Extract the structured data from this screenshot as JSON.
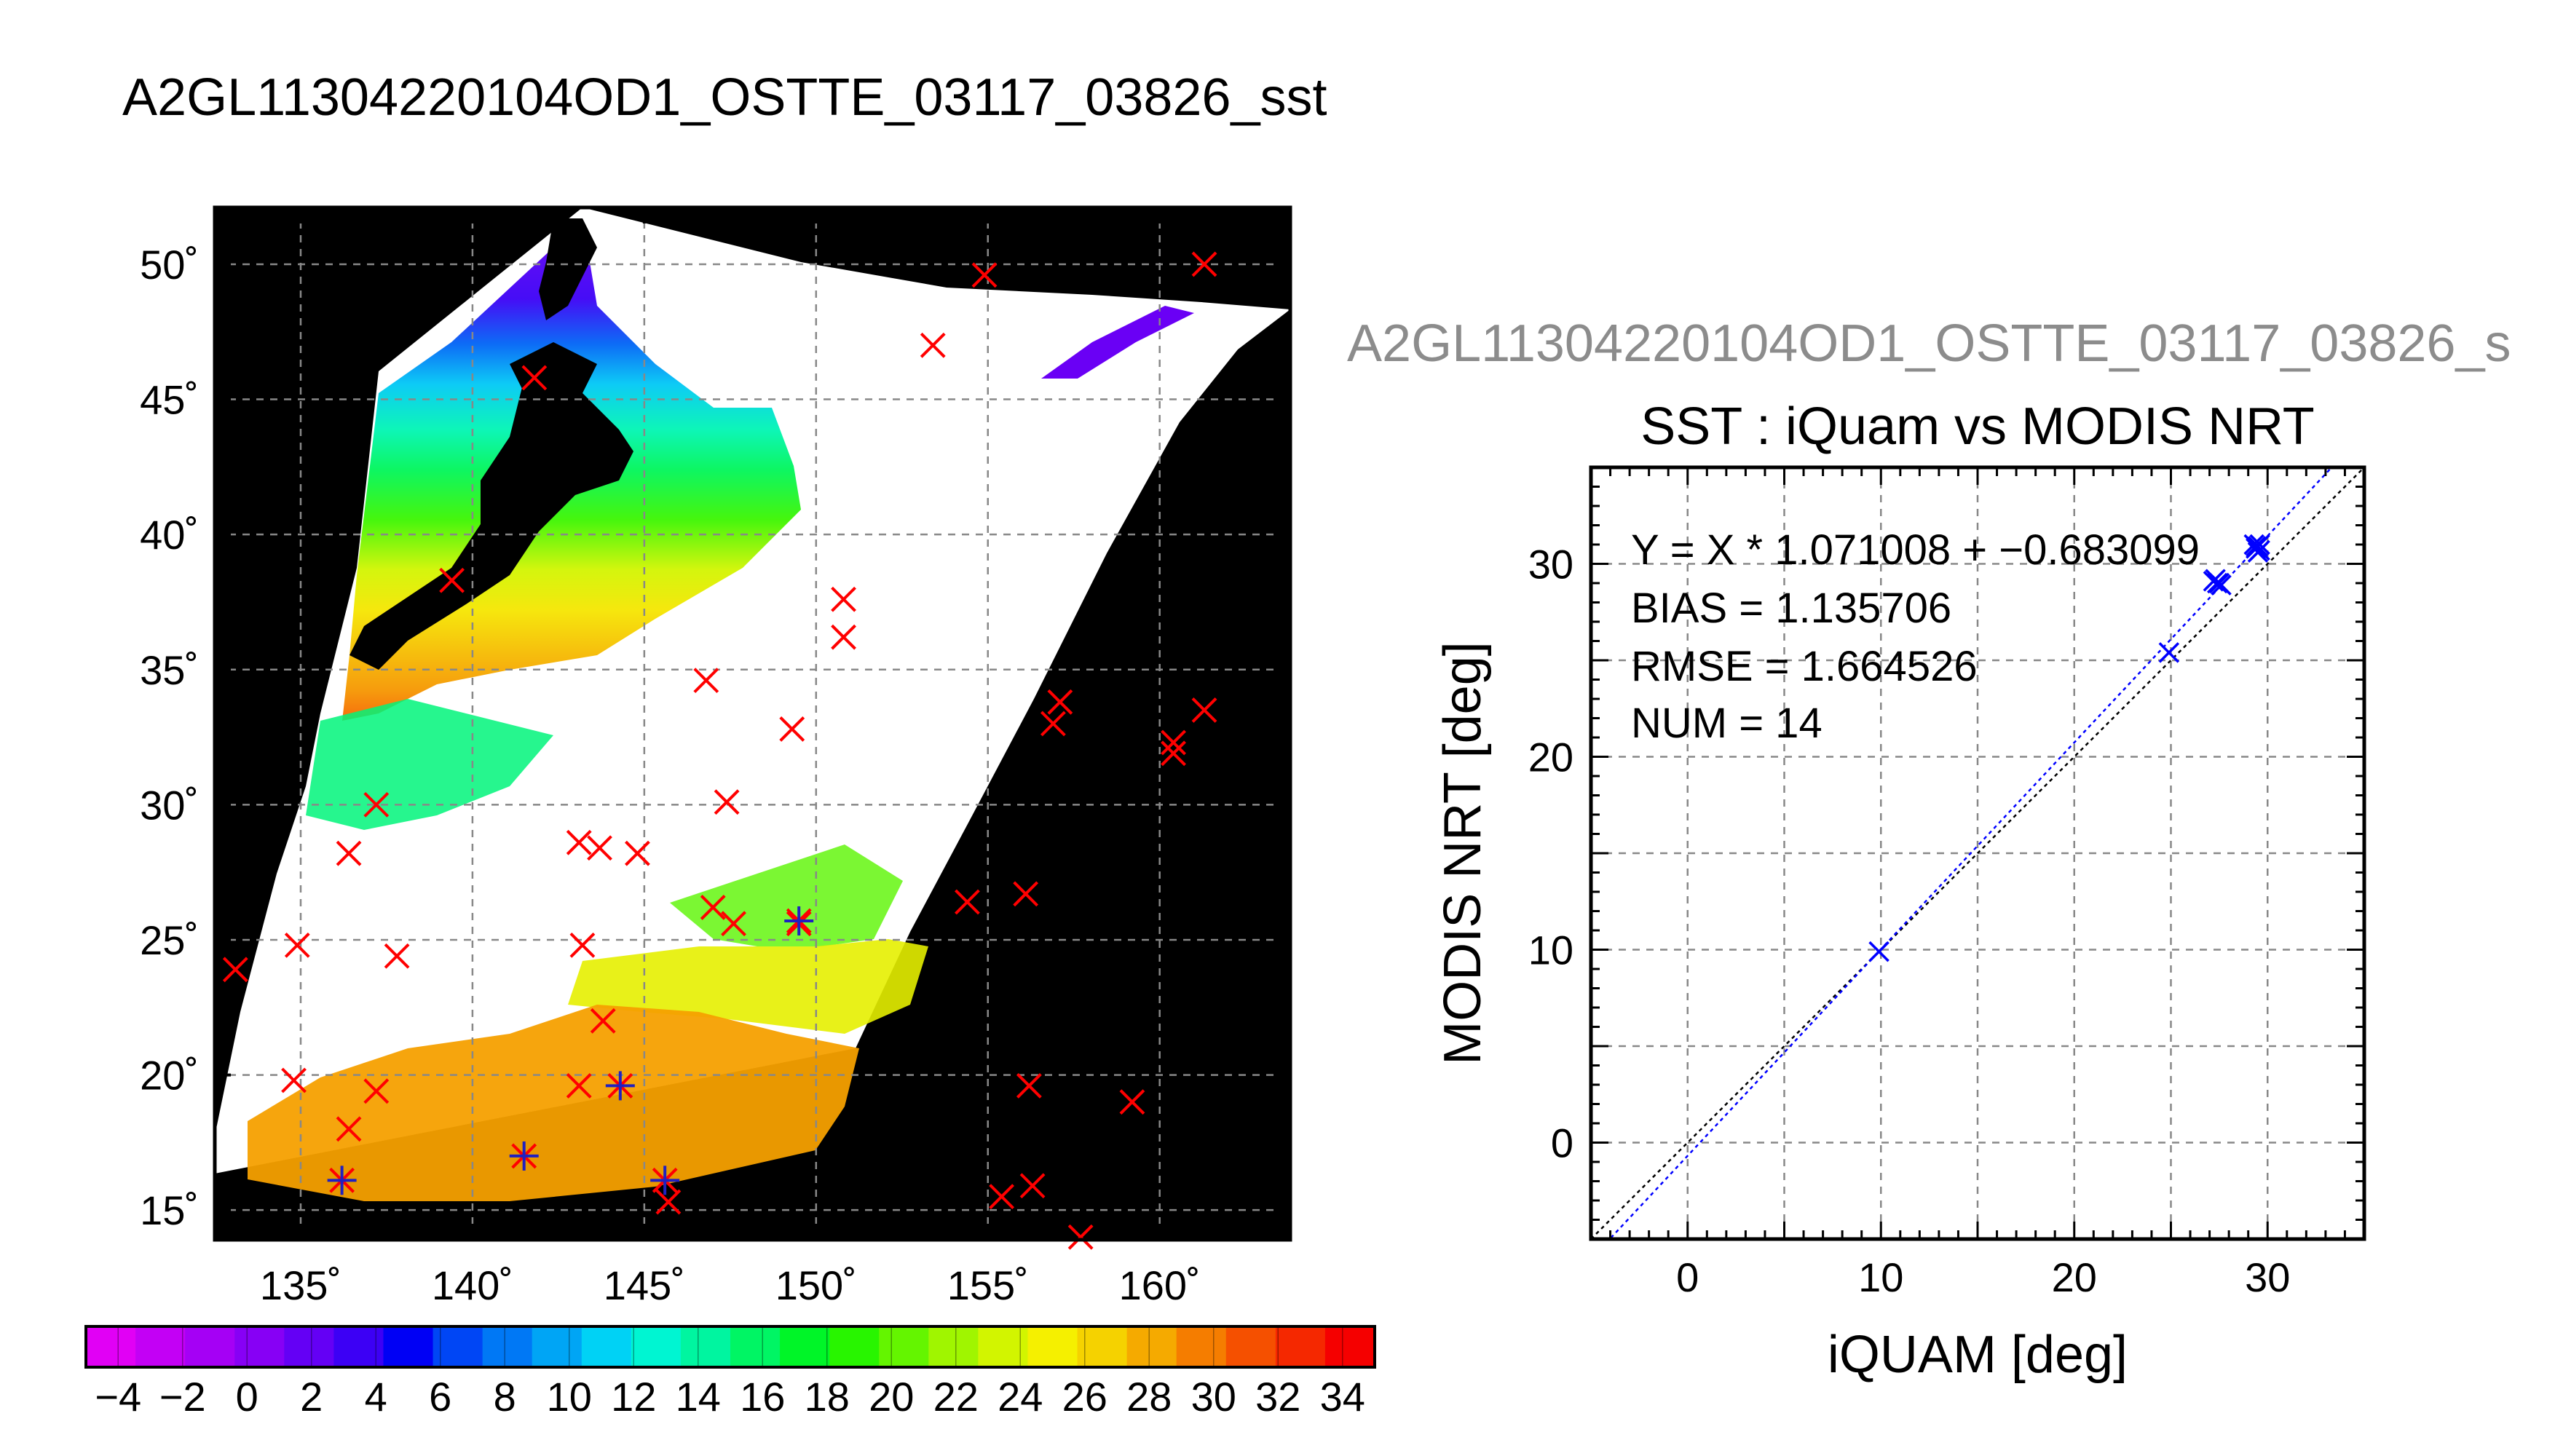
{
  "main_title": "A2GL11304220104OD1_OSTTE_03117_03826_sst",
  "right_title": "A2GL11304220104OD1_OSTTE_03117_03826_s",
  "chart_data": [
    {
      "type": "heatmap",
      "name": "sst-map",
      "title": "",
      "x_ticks": [
        "135˚",
        "140˚",
        "145˚",
        "150˚",
        "155˚",
        "160˚"
      ],
      "y_ticks": [
        "50˚",
        "45˚",
        "40˚",
        "35˚",
        "30˚",
        "25˚",
        "20˚",
        "15˚"
      ],
      "xlim": [
        132.5,
        163.8
      ],
      "ylim": [
        13.9,
        52.1
      ],
      "colorbar": {
        "ticks": [
          "−4",
          "−2",
          "0",
          "2",
          "4",
          "6",
          "8",
          "10",
          "12",
          "14",
          "16",
          "18",
          "20",
          "22",
          "24",
          "26",
          "28",
          "30",
          "32",
          "34"
        ],
        "range": [
          -5,
          35
        ],
        "colors": [
          "#e100f5",
          "#c300f5",
          "#a500f5",
          "#8700f5",
          "#6400f5",
          "#3c00f5",
          "#0000f5",
          "#0046f5",
          "#0078f5",
          "#00a5f5",
          "#00d2f5",
          "#00f5d2",
          "#00f5a0",
          "#00f564",
          "#00f528",
          "#28f500",
          "#64f500",
          "#a0f500",
          "#d2f500",
          "#f5f000",
          "#f5d200",
          "#f5aa00",
          "#f57d00",
          "#f55000",
          "#f52800",
          "#f50000"
        ]
      },
      "markers_red_x": [
        [
          133.1,
          23.9
        ],
        [
          134.9,
          24.8
        ],
        [
          137.8,
          24.4
        ],
        [
          134.8,
          19.8
        ],
        [
          137.2,
          19.4
        ],
        [
          136.4,
          18.0
        ],
        [
          136.4,
          28.2
        ],
        [
          137.2,
          30.0
        ],
        [
          139.4,
          38.3
        ],
        [
          141.8,
          45.8
        ],
        [
          154.9,
          49.6
        ],
        [
          153.4,
          47.0
        ],
        [
          161.3,
          50.0
        ],
        [
          150.8,
          37.6
        ],
        [
          150.8,
          36.2
        ],
        [
          146.8,
          34.6
        ],
        [
          149.3,
          32.8
        ],
        [
          147.4,
          30.1
        ],
        [
          143.1,
          28.6
        ],
        [
          143.7,
          28.4
        ],
        [
          144.8,
          28.2
        ],
        [
          143.2,
          24.8
        ],
        [
          147.0,
          26.2
        ],
        [
          147.6,
          25.6
        ],
        [
          149.5,
          25.6
        ],
        [
          143.8,
          22.0
        ],
        [
          143.1,
          19.6
        ],
        [
          145.7,
          15.3
        ],
        [
          154.4,
          26.4
        ],
        [
          156.1,
          26.7
        ],
        [
          157.1,
          33.8
        ],
        [
          156.9,
          33.0
        ],
        [
          160.4,
          32.3
        ],
        [
          160.4,
          31.9
        ],
        [
          161.3,
          33.5
        ],
        [
          156.2,
          19.6
        ],
        [
          159.2,
          19.0
        ],
        [
          155.4,
          15.5
        ],
        [
          156.3,
          15.9
        ],
        [
          157.7,
          14.0
        ]
      ],
      "markers_blue_star": [
        [
          136.2,
          16.1
        ],
        [
          141.5,
          17.0
        ],
        [
          144.3,
          19.6
        ],
        [
          145.6,
          16.1
        ],
        [
          149.5,
          25.7
        ]
      ]
    },
    {
      "type": "scatter",
      "name": "sst-scatter",
      "title": "SST : iQuam vs MODIS NRT",
      "xlabel": "iQUAM [deg]",
      "ylabel": "MODIS NRT [deg]",
      "xlim": [
        -5,
        35
      ],
      "ylim": [
        -5,
        35
      ],
      "x_ticks": [
        0,
        10,
        20,
        30
      ],
      "y_ticks": [
        0,
        10,
        20,
        30
      ],
      "annotations": [
        "Y = X * 1.071008 + −0.683099",
        "BIAS = 1.135706",
        "RMSE = 1.664526",
        "NUM = 14"
      ],
      "fit": {
        "slope": 1.071008,
        "intercept": -0.683099
      },
      "points": [
        [
          9.9,
          9.9
        ],
        [
          24.9,
          25.4
        ],
        [
          27.2,
          29.1
        ],
        [
          27.4,
          29.0
        ],
        [
          27.6,
          28.9
        ],
        [
          27.3,
          29.2
        ],
        [
          27.5,
          29.0
        ],
        [
          29.4,
          30.8
        ],
        [
          29.5,
          30.9
        ],
        [
          29.3,
          31.0
        ],
        [
          29.6,
          30.7
        ],
        [
          29.5,
          30.6
        ],
        [
          29.4,
          30.9
        ],
        [
          29.6,
          31.0
        ]
      ]
    }
  ]
}
